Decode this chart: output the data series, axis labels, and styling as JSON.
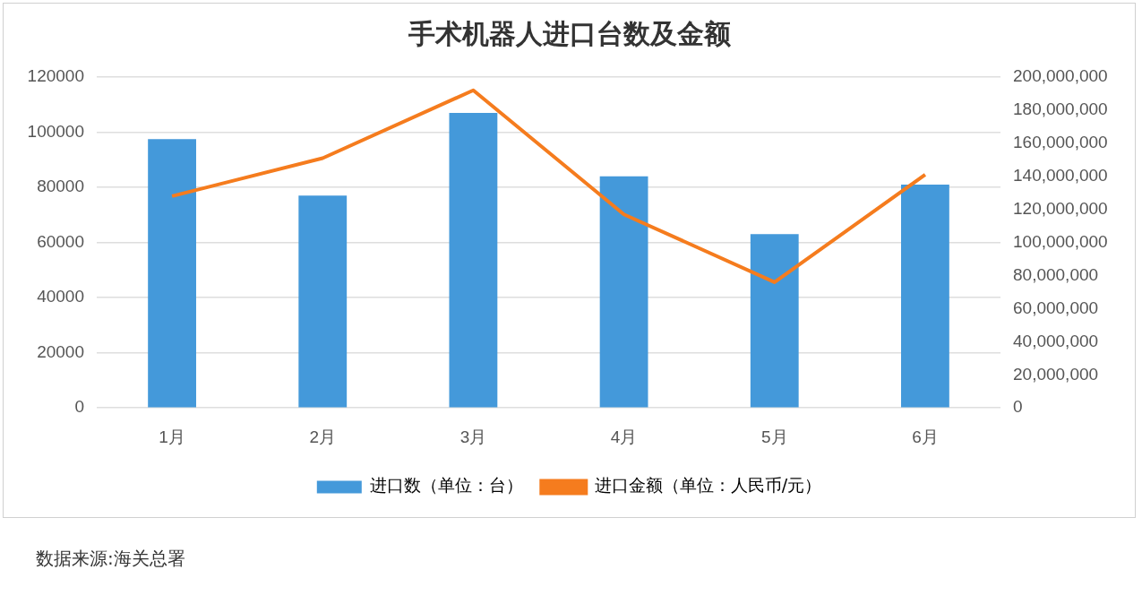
{
  "chart_data": {
    "type": "bar",
    "title": "手术机器人进口台数及金额",
    "categories": [
      "1月",
      "2月",
      "3月",
      "4月",
      "5月",
      "6月"
    ],
    "series": [
      {
        "name": "进口数（单位：台）",
        "color": "#4499da",
        "values": [
          97500,
          77000,
          107000,
          84000,
          63000,
          81000
        ]
      },
      {
        "name": "进口金额（单位：人民币/元）",
        "type": "line",
        "axis": "y2",
        "color": "#f57c1e",
        "values": [
          128000000,
          151000000,
          192000000,
          117000000,
          76000000,
          141000000
        ]
      }
    ],
    "ylim": [
      0,
      120000
    ],
    "yticks": [
      0,
      20000,
      40000,
      60000,
      80000,
      100000,
      120000
    ],
    "y2lim": [
      0,
      200000000
    ],
    "y2ticks": [
      {
        "value": 0,
        "label": "0"
      },
      {
        "value": 20000000,
        "label": "20,000,000"
      },
      {
        "value": 40000000,
        "label": "40,000,000"
      },
      {
        "value": 60000000,
        "label": "60,000,000"
      },
      {
        "value": 80000000,
        "label": "80,000,000"
      },
      {
        "value": 100000000,
        "label": "100,000,000"
      },
      {
        "value": 120000000,
        "label": "120,000,000"
      },
      {
        "value": 140000000,
        "label": "140,000,000"
      },
      {
        "value": 160000000,
        "label": "160,000,000"
      },
      {
        "value": 180000000,
        "label": "180,000,000"
      },
      {
        "value": 200000000,
        "label": "200,000,000"
      }
    ],
    "grid": "y",
    "legend": "bottom",
    "marker": "none",
    "annotations": [
      "数据来源:海关总署"
    ]
  }
}
